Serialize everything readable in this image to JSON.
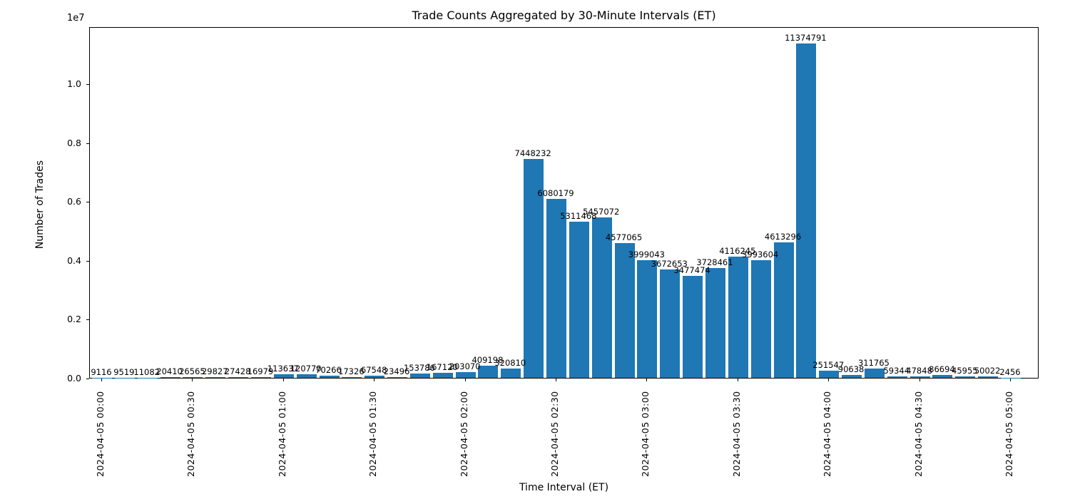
{
  "chart_data": {
    "type": "bar",
    "title": "Trade Counts Aggregated by 30-Minute Intervals (ET)",
    "xlabel": "Time Interval (ET)",
    "ylabel": "Number of Trades",
    "y_offset_label": "1e7",
    "ylim": [
      0,
      11950000
    ],
    "grid": false,
    "bar_color": "#1f77b4",
    "ytick_labels": [
      "0.0",
      "0.2",
      "0.4",
      "0.6",
      "0.8",
      "1.0"
    ],
    "ytick_values": [
      0,
      2000000,
      4000000,
      6000000,
      8000000,
      10000000
    ],
    "xtick_labels": [
      "2024-04-05 00:00",
      "2024-04-05 00:30",
      "2024-04-05 01:00",
      "2024-04-05 01:30",
      "2024-04-05 02:00",
      "2024-04-05 02:30",
      "2024-04-05 03:00",
      "2024-04-05 03:30",
      "2024-04-05 04:00",
      "2024-04-05 04:30",
      "2024-04-05 05:00"
    ],
    "xtick_every_n_bars": 4,
    "values": [
      9116,
      9519,
      11082,
      20410,
      26565,
      29827,
      27428,
      16979,
      113637,
      120770,
      70266,
      17326,
      67548,
      23496,
      153786,
      167120,
      203070,
      409198,
      320810,
      7448232,
      6080179,
      5311468,
      5457072,
      4577065,
      3999043,
      3672653,
      3477474,
      3728461,
      4116245,
      3993604,
      4613296,
      11374791,
      251547,
      90638,
      311765,
      59344,
      47848,
      86694,
      45955,
      50022,
      2456
    ],
    "bar_value_labels_shown": true
  }
}
